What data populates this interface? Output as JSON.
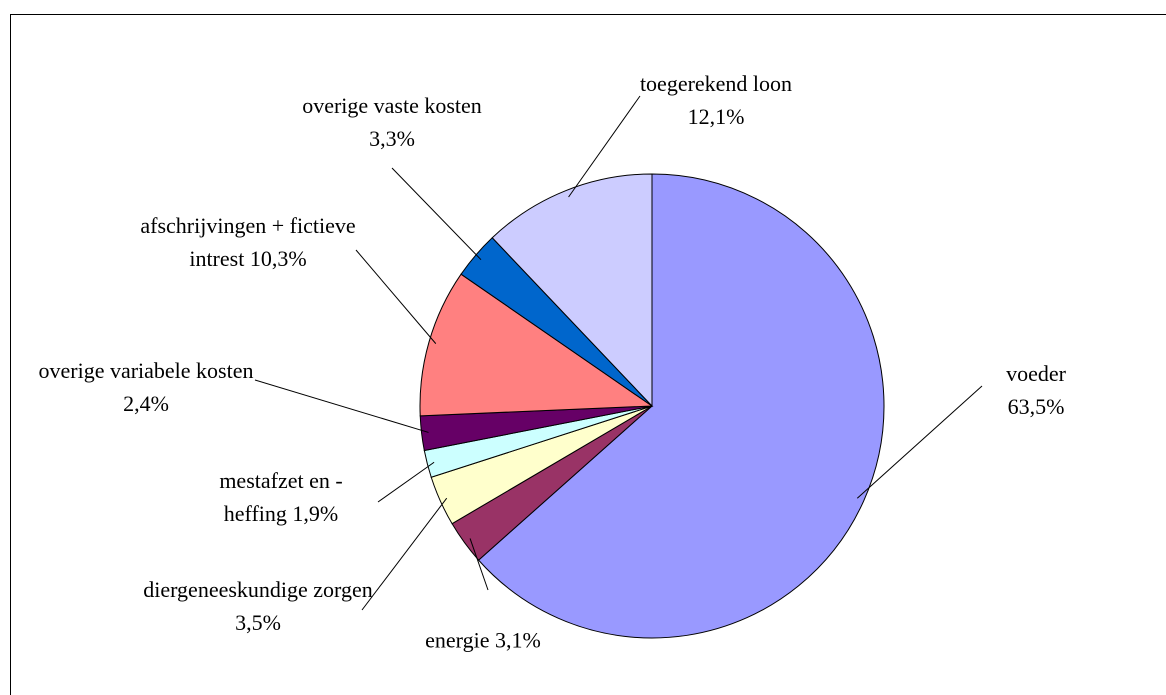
{
  "chart_data": {
    "type": "pie",
    "categories": [
      "voeder",
      "energie",
      "diergeneeskundige zorgen",
      "mestafzet en - heffing",
      "overige variabele kosten",
      "afschrijvingen + fictieve intrest",
      "overige vaste kosten",
      "toegerekend loon"
    ],
    "values": [
      63.5,
      3.1,
      3.5,
      1.9,
      2.4,
      10.3,
      3.3,
      12.1
    ],
    "value_labels": [
      "63,5%",
      "3,1%",
      "3,5%",
      "1,9%",
      "2,4%",
      "10,3%",
      "3,3%",
      "12,1%"
    ],
    "colors": [
      "#9999ff",
      "#993366",
      "#ffffcc",
      "#ccffff",
      "#660066",
      "#ff8080",
      "#0066cc",
      "#ccccff"
    ]
  }
}
